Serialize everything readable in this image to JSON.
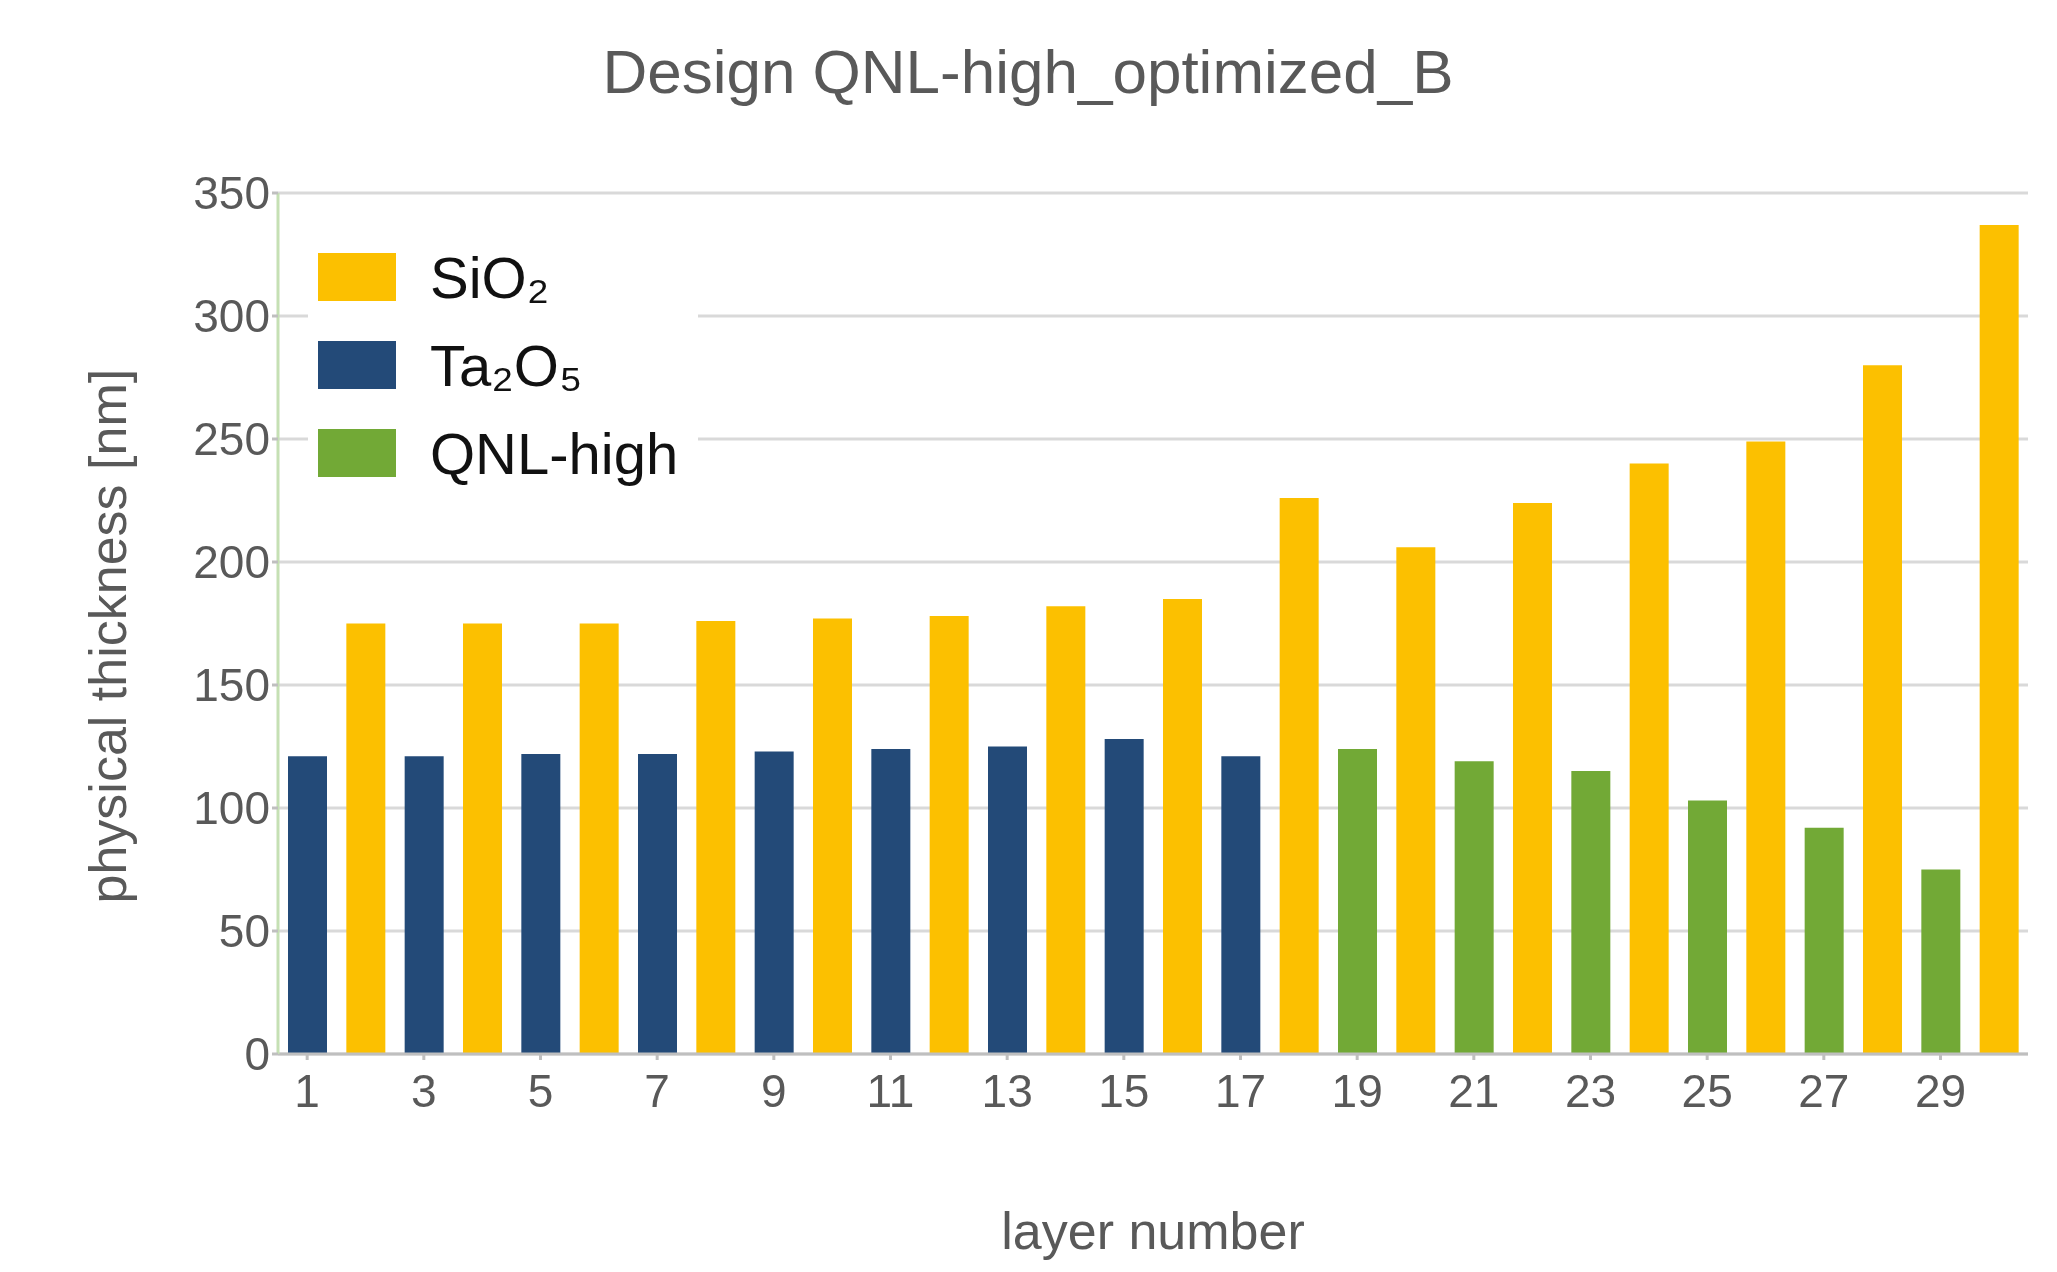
{
  "chart_data": {
    "type": "bar",
    "title": "Design QNL-high_optimized_B",
    "xlabel": "layer number",
    "ylabel": "physical thickness [nm]",
    "x": [
      1,
      2,
      3,
      4,
      5,
      6,
      7,
      8,
      9,
      10,
      11,
      12,
      13,
      14,
      15,
      16,
      17,
      18,
      19,
      20,
      21,
      22,
      23,
      24,
      25,
      26,
      27,
      28,
      29,
      30
    ],
    "xlim": [
      0.5,
      30.5
    ],
    "xticks": [
      1,
      3,
      5,
      7,
      9,
      11,
      13,
      15,
      17,
      19,
      21,
      23,
      25,
      27,
      29
    ],
    "series": [
      {
        "name": "SiO₂",
        "color": "#fcc000",
        "values": [
          null,
          175,
          null,
          175,
          null,
          175,
          null,
          176,
          null,
          177,
          null,
          178,
          null,
          182,
          null,
          185,
          null,
          226,
          null,
          206,
          null,
          224,
          null,
          240,
          null,
          249,
          null,
          280,
          null,
          337
        ]
      },
      {
        "name": "Ta₂O₅",
        "color": "#234a78",
        "values": [
          121,
          null,
          121,
          null,
          122,
          null,
          122,
          null,
          123,
          null,
          124,
          null,
          125,
          null,
          128,
          null,
          121,
          null,
          null,
          null,
          null,
          null,
          null,
          null,
          null,
          null,
          null,
          null,
          null,
          null
        ]
      },
      {
        "name": "QNL-high",
        "color": "#72a936",
        "values": [
          null,
          null,
          null,
          null,
          null,
          null,
          null,
          null,
          null,
          null,
          null,
          null,
          null,
          null,
          null,
          null,
          null,
          null,
          124,
          null,
          119,
          null,
          115,
          null,
          103,
          null,
          92,
          null,
          75,
          null
        ]
      }
    ],
    "stacked": true,
    "ylim": [
      0,
      350
    ],
    "yticks": [
      0,
      50,
      100,
      150,
      200,
      250,
      300,
      350
    ],
    "grid": "y",
    "legend": "top left"
  }
}
